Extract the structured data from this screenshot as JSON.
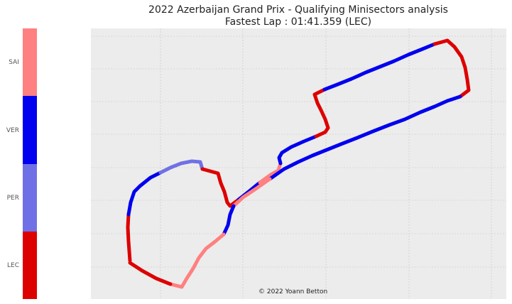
{
  "title_line1": "2022 Azerbaijan Grand Prix - Qualifying Minisectors analysis",
  "title_line2": "Fastest Lap : 01:41.359 (LEC)",
  "credit": "© 2022 Yoann Betton",
  "colors": {
    "SAI": "#ff8080",
    "VER": "#0000ee",
    "PER": "#7070e6",
    "LEC": "#dd0000",
    "plot_bg": "#ececec",
    "grid": "#cfcfcf"
  },
  "legend": [
    {
      "driver": "SAI",
      "color": "#ff8080"
    },
    {
      "driver": "VER",
      "color": "#0000ee"
    },
    {
      "driver": "PER",
      "color": "#7070e6"
    },
    {
      "driver": "LEC",
      "color": "#dd0000"
    }
  ],
  "chart_data": {
    "type": "track-map",
    "grid": true,
    "axes_tick_labels": false,
    "track": [
      [
        183,
        367
      ],
      [
        181,
        340
      ],
      [
        180,
        320
      ],
      [
        181,
        302
      ],
      [
        184,
        285
      ],
      [
        189,
        270
      ],
      [
        197,
        262
      ],
      [
        212,
        250
      ],
      [
        226,
        243
      ],
      [
        240,
        236
      ],
      [
        255,
        230
      ],
      [
        270,
        227
      ],
      [
        282,
        228
      ],
      [
        285,
        238
      ],
      [
        296,
        241
      ],
      [
        307,
        244
      ],
      [
        311,
        258
      ],
      [
        316,
        270
      ],
      [
        320,
        285
      ],
      [
        324,
        290
      ],
      [
        336,
        281
      ],
      [
        350,
        270
      ],
      [
        366,
        257
      ],
      [
        381,
        246
      ],
      [
        392,
        240
      ],
      [
        395,
        230
      ],
      [
        393,
        222
      ],
      [
        397,
        215
      ],
      [
        410,
        207
      ],
      [
        428,
        199
      ],
      [
        445,
        192
      ],
      [
        458,
        186
      ],
      [
        462,
        180
      ],
      [
        458,
        168
      ],
      [
        452,
        155
      ],
      [
        447,
        145
      ],
      [
        443,
        133
      ],
      [
        457,
        126
      ],
      [
        475,
        119
      ],
      [
        495,
        111
      ],
      [
        515,
        102
      ],
      [
        535,
        94
      ],
      [
        555,
        86
      ],
      [
        575,
        77
      ],
      [
        595,
        69
      ],
      [
        612,
        62
      ],
      [
        630,
        57
      ],
      [
        640,
        66
      ],
      [
        650,
        80
      ],
      [
        655,
        95
      ],
      [
        658,
        112
      ],
      [
        660,
        127
      ],
      [
        648,
        136
      ],
      [
        630,
        142
      ],
      [
        612,
        150
      ],
      [
        592,
        158
      ],
      [
        570,
        168
      ],
      [
        548,
        176
      ],
      [
        525,
        185
      ],
      [
        503,
        194
      ],
      [
        480,
        203
      ],
      [
        460,
        211
      ],
      [
        440,
        219
      ],
      [
        420,
        228
      ],
      [
        400,
        238
      ],
      [
        380,
        252
      ],
      [
        360,
        266
      ],
      [
        342,
        278
      ],
      [
        329,
        290
      ],
      [
        324,
        302
      ],
      [
        321,
        317
      ],
      [
        315,
        330
      ],
      [
        303,
        340
      ],
      [
        290,
        350
      ],
      [
        280,
        363
      ],
      [
        272,
        378
      ],
      [
        263,
        392
      ],
      [
        256,
        404
      ],
      [
        240,
        400
      ],
      [
        220,
        392
      ],
      [
        200,
        381
      ],
      [
        183,
        370
      ]
    ],
    "segments": [
      {
        "driver": "LEC",
        "from": 0,
        "to": 3
      },
      {
        "driver": "VER",
        "from": 3,
        "to": 8
      },
      {
        "driver": "PER",
        "from": 8,
        "to": 13
      },
      {
        "driver": "LEC",
        "from": 13,
        "to": 20
      },
      {
        "driver": "VER",
        "from": 20,
        "to": 22
      },
      {
        "driver": "SAI",
        "from": 22,
        "to": 25
      },
      {
        "driver": "VER",
        "from": 25,
        "to": 30
      },
      {
        "driver": "LEC",
        "from": 30,
        "to": 37
      },
      {
        "driver": "VER",
        "from": 37,
        "to": 45
      },
      {
        "driver": "LEC",
        "from": 45,
        "to": 52
      },
      {
        "driver": "VER",
        "from": 52,
        "to": 65
      },
      {
        "driver": "SAI",
        "from": 65,
        "to": 68
      },
      {
        "driver": "VER",
        "from": 68,
        "to": 71
      },
      {
        "driver": "SAI",
        "from": 71,
        "to": 78
      },
      {
        "driver": "LEC",
        "from": 78,
        "to": 82
      }
    ]
  }
}
